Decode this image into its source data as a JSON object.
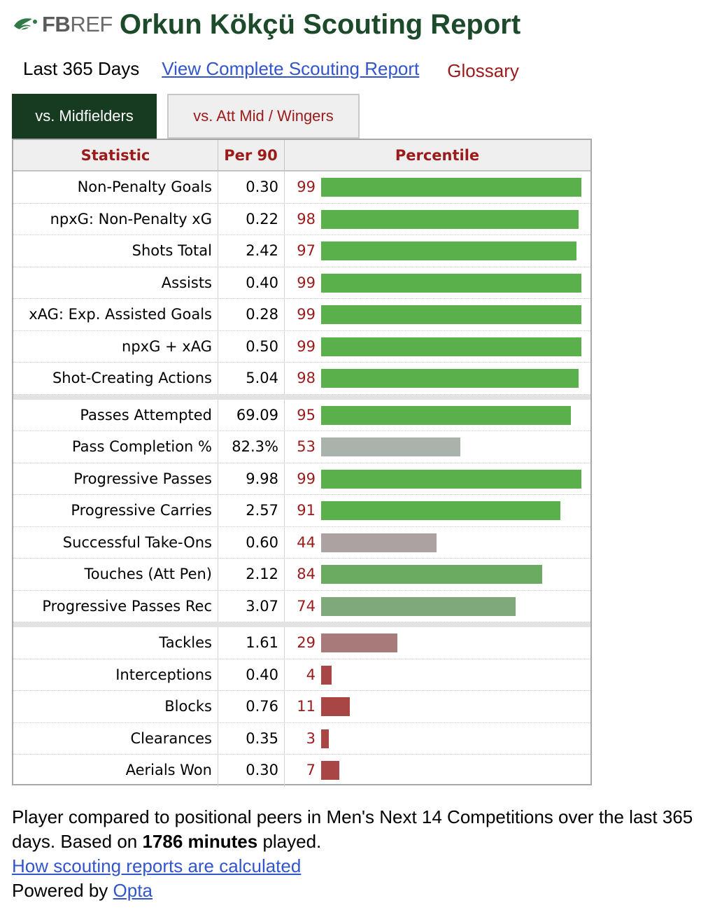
{
  "logo": {
    "fb": "FB",
    "ref": "REF"
  },
  "title": "Orkun Kökçü Scouting Report",
  "links": {
    "period": "Last 365 Days",
    "full_report": "View Complete Scouting Report",
    "glossary": "Glossary"
  },
  "tabs": [
    {
      "label": "vs. Midfielders",
      "active": true
    },
    {
      "label": "vs. Att Mid / Wingers",
      "active": false
    }
  ],
  "table": {
    "headers": {
      "stat": "Statistic",
      "per90": "Per 90",
      "pct": "Percentile"
    },
    "sections": [
      [
        {
          "stat": "Non-Penalty Goals",
          "per90": "0.30",
          "pct": 99,
          "color": "#5ab04a"
        },
        {
          "stat": "npxG: Non-Penalty xG",
          "per90": "0.22",
          "pct": 98,
          "color": "#5ab04a"
        },
        {
          "stat": "Shots Total",
          "per90": "2.42",
          "pct": 97,
          "color": "#5ab04a"
        },
        {
          "stat": "Assists",
          "per90": "0.40",
          "pct": 99,
          "color": "#5ab04a"
        },
        {
          "stat": "xAG: Exp. Assisted Goals",
          "per90": "0.28",
          "pct": 99,
          "color": "#5ab04a"
        },
        {
          "stat": "npxG + xAG",
          "per90": "0.50",
          "pct": 99,
          "color": "#5ab04a"
        },
        {
          "stat": "Shot-Creating Actions",
          "per90": "5.04",
          "pct": 98,
          "color": "#5ab04a"
        }
      ],
      [
        {
          "stat": "Passes Attempted",
          "per90": "69.09",
          "pct": 95,
          "color": "#5ab04a"
        },
        {
          "stat": "Pass Completion %",
          "per90": "82.3%",
          "pct": 53,
          "color": "#a9b3ab"
        },
        {
          "stat": "Progressive Passes",
          "per90": "9.98",
          "pct": 99,
          "color": "#5ab04a"
        },
        {
          "stat": "Progressive Carries",
          "per90": "2.57",
          "pct": 91,
          "color": "#5ab04a"
        },
        {
          "stat": "Successful Take-Ons",
          "per90": "0.60",
          "pct": 44,
          "color": "#ada2a2"
        },
        {
          "stat": "Touches (Att Pen)",
          "per90": "2.12",
          "pct": 84,
          "color": "#6aab61"
        },
        {
          "stat": "Progressive Passes Rec",
          "per90": "3.07",
          "pct": 74,
          "color": "#7fa97a"
        }
      ],
      [
        {
          "stat": "Tackles",
          "per90": "1.61",
          "pct": 29,
          "color": "#a87a7a"
        },
        {
          "stat": "Interceptions",
          "per90": "0.40",
          "pct": 4,
          "color": "#a84545"
        },
        {
          "stat": "Blocks",
          "per90": "0.76",
          "pct": 11,
          "color": "#a84545"
        },
        {
          "stat": "Clearances",
          "per90": "0.35",
          "pct": 3,
          "color": "#a84545"
        },
        {
          "stat": "Aerials Won",
          "per90": "0.30",
          "pct": 7,
          "color": "#a84545"
        }
      ]
    ]
  },
  "footer": {
    "line1": "Player compared to positional peers in Men's Next 14 Competitions over the last 365 days. Based on ",
    "minutes": "1786 minutes",
    "line1_end": " played.",
    "how_link": "How scouting reports are calculated",
    "powered_by": "Powered by ",
    "opta": "Opta"
  },
  "colors": {
    "title_green": "#1c4a2a",
    "tab_active_bg": "#163b20",
    "accent_red": "#9b1b1b",
    "link_blue": "#3355cc"
  }
}
